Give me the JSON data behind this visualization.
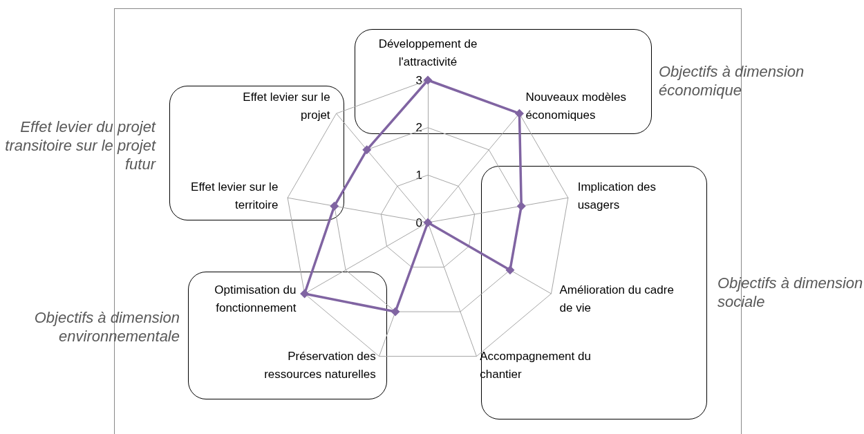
{
  "chart_data": {
    "type": "radar",
    "categories": [
      "Développement de l'attractivité",
      "Nouveaux modèles économiques",
      "Implication des usagers",
      "Amélioration du cadre de vie",
      "Accompagnement du chantier",
      "Préservation des ressources naturelles",
      "Optimisation du fonctionnement",
      "Effet levier sur le territoire",
      "Effet levier sur le projet"
    ],
    "series": [
      {
        "color": "#8064a2",
        "values": [
          3,
          3,
          2,
          2,
          0,
          2,
          3,
          2,
          2
        ]
      }
    ],
    "ylim": [
      0,
      3
    ],
    "yticks": [
      0,
      1,
      2,
      3
    ],
    "grid": true,
    "marker": "diamond",
    "line_style": "solid",
    "annotations": [
      "Objectifs à dimension économique",
      "Objectifs à dimension sociale",
      "Objectifs à dimension environnementale",
      "Effet levier du projet transitoire sur le projet futur"
    ]
  }
}
